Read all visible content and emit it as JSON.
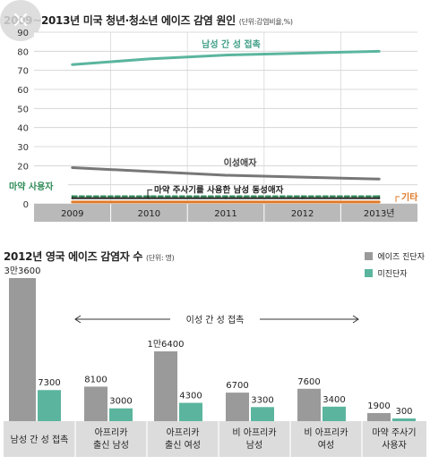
{
  "chart1": {
    "title": "2009~2013년 미국 청년·청소년 에이즈 감염 원인",
    "unit": "(단위:감염비율,%)",
    "chart_data": {
      "type": "line",
      "x": [
        "2009",
        "2010",
        "2011",
        "2012",
        "2013년"
      ],
      "yticks": [
        0,
        10,
        20,
        30,
        40,
        50,
        60,
        70,
        80,
        90
      ],
      "ylim": [
        0,
        90
      ],
      "grid": true,
      "series": [
        {
          "name": "남성 간 성 접촉",
          "values": [
            73,
            76,
            78,
            79,
            80
          ],
          "color": "#5bb59e"
        },
        {
          "name": "이성애자",
          "values": [
            19,
            17,
            15,
            14,
            13
          ],
          "color": "#777777"
        },
        {
          "name": "마약 사용자",
          "values": [
            4,
            4,
            4,
            4,
            4
          ],
          "color": "#2e8b57"
        },
        {
          "name": "마약 주사기를 사용한 남성 동성애자",
          "values": [
            3,
            3,
            3,
            3,
            3
          ],
          "color": "#222222"
        },
        {
          "name": "기타",
          "values": [
            1,
            1,
            1,
            1,
            1
          ],
          "color": "#e07b2a"
        }
      ]
    }
  },
  "chart2": {
    "title": "2012년 영국 에이즈 감염자 수",
    "unit": "(단위: 명)",
    "bracket_label": "이성 간 성 접촉",
    "chart_data": {
      "type": "bar",
      "categories": [
        "남성 간 성 접촉",
        "아프리카 출신 남성",
        "아프리카 출신 여성",
        "비 아프리카 남성",
        "비 아프리카 여성",
        "마약 주사기 사용자"
      ],
      "category_lines": [
        [
          "남성 간 성 접촉"
        ],
        [
          "아프리카",
          "출신 남성"
        ],
        [
          "아프리카",
          "출신 여성"
        ],
        [
          "비 아프리카",
          "남성"
        ],
        [
          "비 아프리카",
          "여성"
        ],
        [
          "마약 주사기",
          "사용자"
        ]
      ],
      "series": [
        {
          "name": "에이즈 진단자",
          "values": [
            33600,
            8100,
            16400,
            6700,
            7600,
            1900
          ],
          "labels": [
            "3만3600",
            "8100",
            "1만6400",
            "6700",
            "7600",
            "1900"
          ],
          "color": "#9a9a9a"
        },
        {
          "name": "미진단자",
          "values": [
            7300,
            3000,
            4300,
            3300,
            3400,
            300
          ],
          "labels": [
            "7300",
            "3000",
            "4300",
            "3300",
            "3400",
            "300"
          ],
          "color": "#5bb59e"
        }
      ]
    }
  }
}
